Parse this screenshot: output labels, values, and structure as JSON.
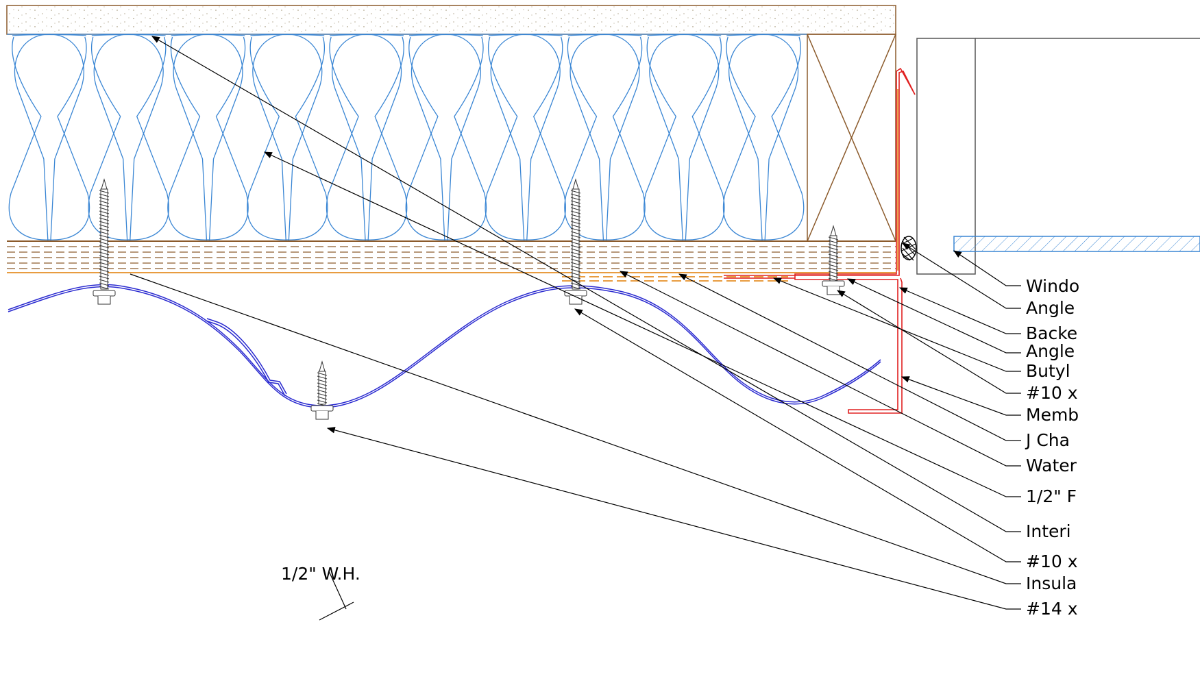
{
  "labels": {
    "window": "Windo",
    "angle_1": "Angle",
    "backer": "Backe",
    "angle_2": "Angle",
    "butyl": "Butyl",
    "fastener_10_a": "#10 x",
    "membrane": "Memb",
    "j_channel": "J Cha",
    "water": "Water",
    "half_inch": "1/2\" F",
    "interior": "Interi",
    "fastener_10_b": "#10 x",
    "insulation": "Insula",
    "fastener_14": "#14 x",
    "wh_note": "1/2\" W.H."
  },
  "colors": {
    "insulation": "#3a86d4",
    "wood": "#8b5a2b",
    "membrane": "#e07b00",
    "flashing": "#e02020",
    "panel": "#2a2ad0",
    "line": "#000000",
    "outline": "#555555"
  }
}
